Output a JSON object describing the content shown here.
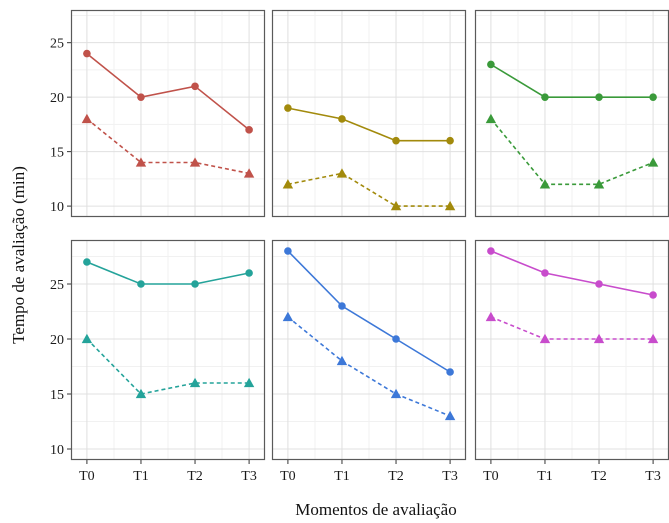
{
  "chart_data": {
    "type": "line",
    "layout": "faceted 2x3 grid",
    "xlabel": "Momentos de avaliação",
    "ylabel": "Tempo de avaliação (min)",
    "categories": [
      "T0",
      "T1",
      "T2",
      "T3"
    ],
    "row_ylims": [
      [
        9,
        28
      ],
      [
        9,
        29
      ]
    ],
    "row_yticks": [
      [
        10,
        15,
        20,
        25
      ],
      [
        10,
        15,
        20,
        25
      ]
    ],
    "grid": true,
    "panels": [
      {
        "row": 0,
        "col": 0,
        "color": "#c0524a",
        "series": [
          {
            "style": "solid-circle",
            "values": [
              24,
              20,
              21,
              17
            ]
          },
          {
            "style": "dashed-triangle",
            "values": [
              18,
              14,
              14,
              13
            ]
          }
        ]
      },
      {
        "row": 0,
        "col": 1,
        "color": "#a28a0c",
        "series": [
          {
            "style": "solid-circle",
            "values": [
              19,
              18,
              16,
              16
            ]
          },
          {
            "style": "dashed-triangle",
            "values": [
              12,
              13,
              10,
              10
            ]
          }
        ]
      },
      {
        "row": 0,
        "col": 2,
        "color": "#3a9a3a",
        "series": [
          {
            "style": "solid-circle",
            "values": [
              23,
              20,
              20,
              20
            ]
          },
          {
            "style": "dashed-triangle",
            "values": [
              18,
              12,
              12,
              14
            ]
          }
        ]
      },
      {
        "row": 1,
        "col": 0,
        "color": "#24a39a",
        "series": [
          {
            "style": "solid-circle",
            "values": [
              27,
              25,
              25,
              26
            ]
          },
          {
            "style": "dashed-triangle",
            "values": [
              20,
              15,
              16,
              16
            ]
          }
        ]
      },
      {
        "row": 1,
        "col": 1,
        "color": "#3d78d8",
        "series": [
          {
            "style": "solid-circle",
            "values": [
              28,
              23,
              20,
              17
            ]
          },
          {
            "style": "dashed-triangle",
            "values": [
              22,
              18,
              15,
              13
            ]
          }
        ]
      },
      {
        "row": 1,
        "col": 2,
        "color": "#c84ccc",
        "series": [
          {
            "style": "solid-circle",
            "values": [
              28,
              26,
              25,
              24
            ]
          },
          {
            "style": "dashed-triangle",
            "values": [
              22,
              20,
              20,
              20
            ]
          }
        ]
      }
    ]
  }
}
